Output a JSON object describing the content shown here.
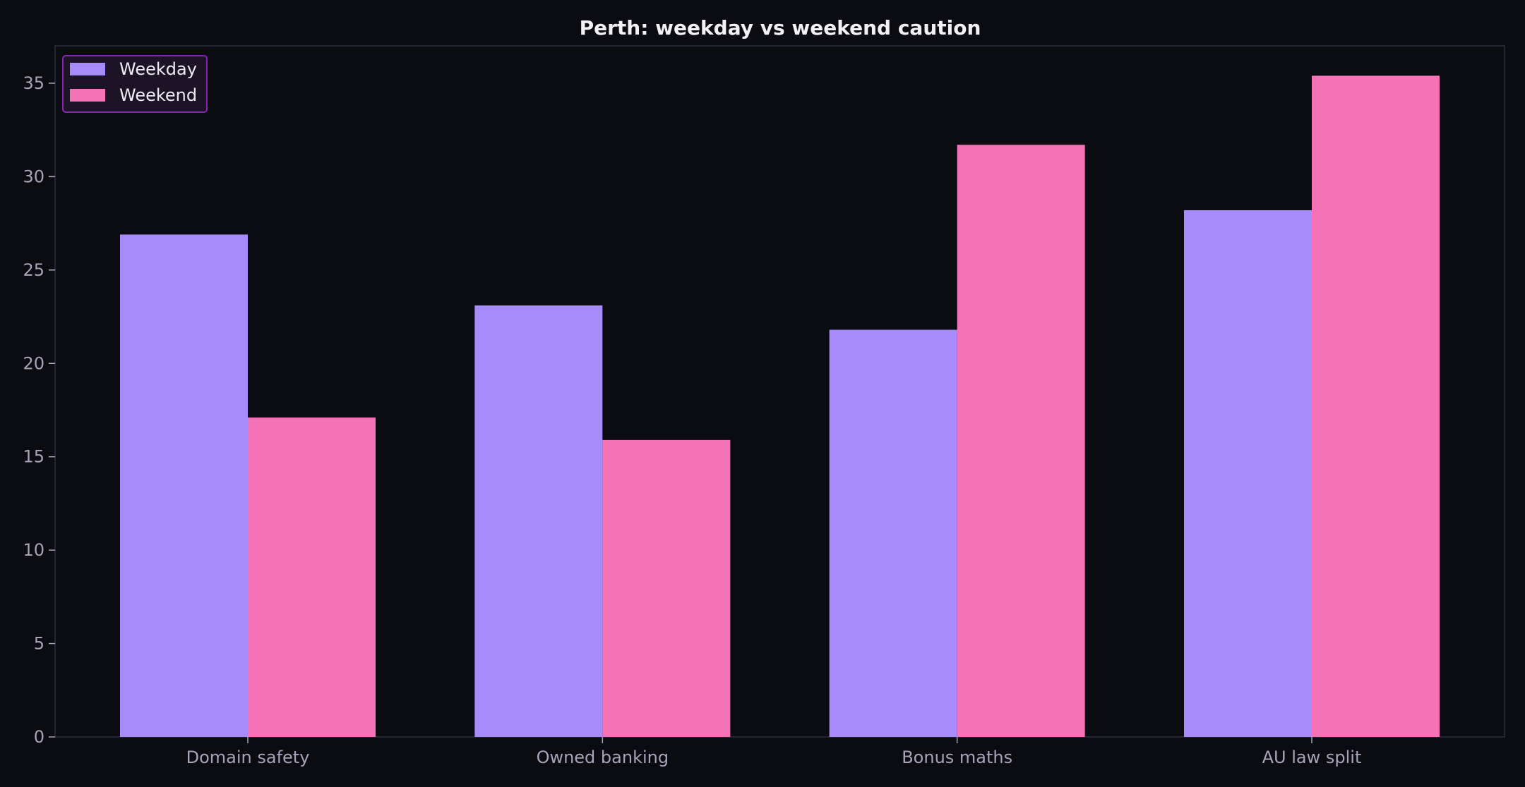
{
  "chart_data": {
    "type": "bar",
    "title": "Perth: weekday vs weekend caution",
    "xlabel": "",
    "ylabel": "",
    "categories": [
      "Domain safety",
      "Owned banking",
      "Bonus maths",
      "AU law split"
    ],
    "series": [
      {
        "name": "Weekday",
        "values": [
          26.9,
          23.1,
          21.8,
          28.2
        ],
        "color": "#a78bfa"
      },
      {
        "name": "Weekend",
        "values": [
          17.1,
          15.9,
          31.7,
          35.4
        ],
        "color": "#f472b6"
      }
    ],
    "ylim": [
      0,
      37
    ],
    "yticks": [
      0,
      5,
      10,
      15,
      20,
      25,
      30,
      35
    ],
    "grid": false,
    "legend_position": "top-left",
    "colors": {
      "background": "#0b0b12",
      "axes_frame": "#2e2c3d",
      "legend_border": "#8b1fb8",
      "legend_bg": "#1c1326",
      "tick_text": "#a8a4b8",
      "title_text": "#f2f2f5"
    }
  }
}
